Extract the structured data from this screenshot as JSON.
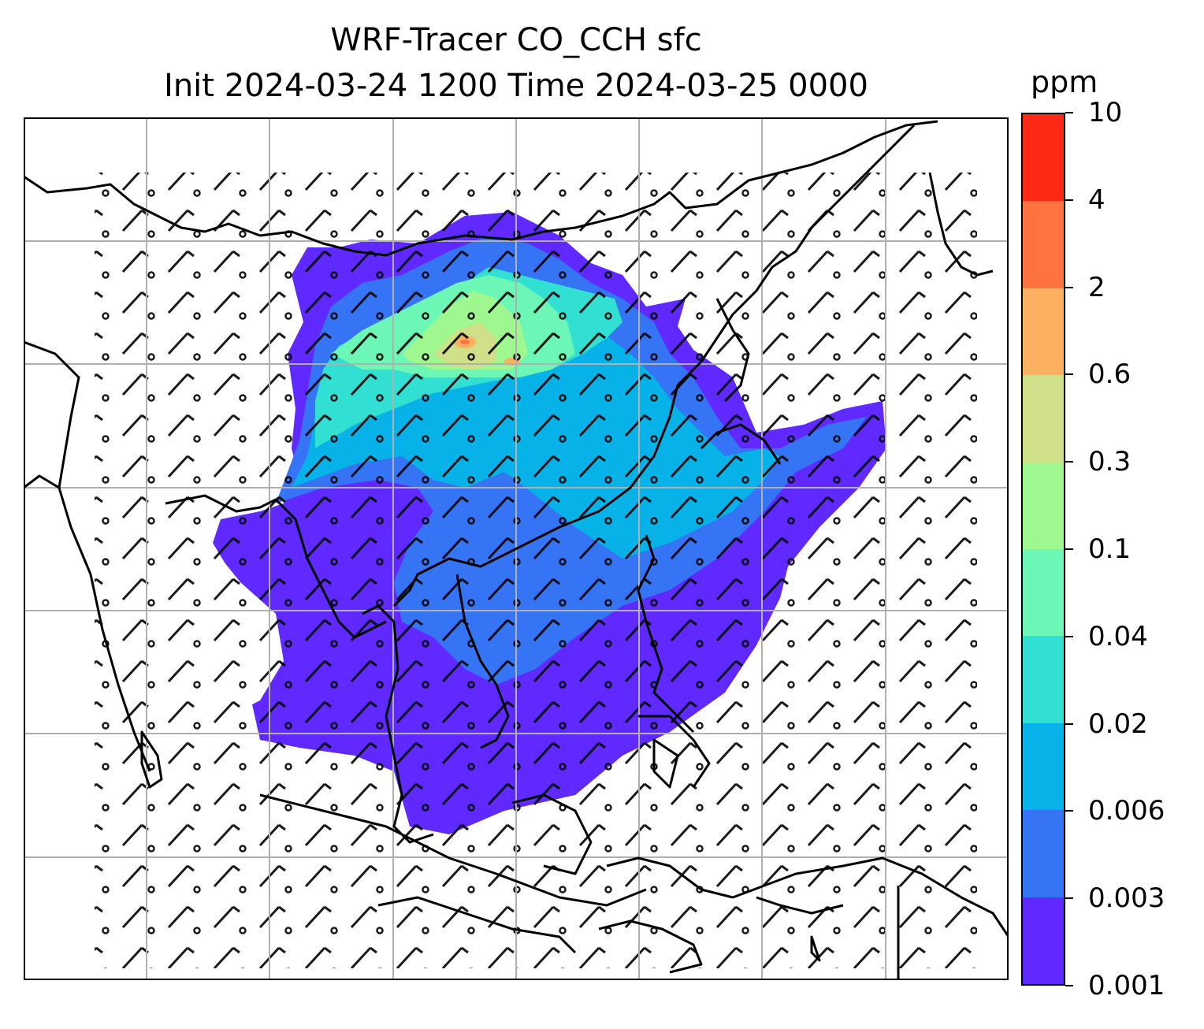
{
  "title_line1": "WRF-Tracer CO_CCH sfc",
  "title_line2": "Init 2024-03-24 1200 Time 2024-03-25 0000",
  "colorbar": {
    "units": "ppm",
    "levels": [
      "0.001",
      "0.003",
      "0.006",
      "0.02",
      "0.04",
      "0.1",
      "0.3",
      "0.6",
      "2",
      "4",
      "10"
    ],
    "colors": [
      "#6029ff",
      "#3575f5",
      "#06b2e8",
      "#31e0d2",
      "#6cf7b6",
      "#9ff78f",
      "#cfe088",
      "#fdb05f",
      "#ff7340",
      "#ff2916"
    ]
  },
  "map": {
    "field": "CO_CCH surface concentration (ppm)",
    "overlays": [
      "coastlines",
      "country borders",
      "lat/lon gridlines",
      "wind barbs"
    ],
    "gridline_color": "#b0b0b0"
  }
}
